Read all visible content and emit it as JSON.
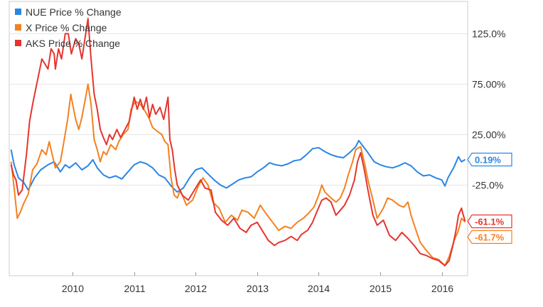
{
  "chart_data": {
    "type": "line",
    "title": "",
    "xlabel": "",
    "ylabel": "",
    "x_ticks": [
      {
        "label": "2010",
        "year": 2010.0
      },
      {
        "label": "2011",
        "year": 2011.0
      },
      {
        "label": "2012",
        "year": 2012.0
      },
      {
        "label": "2013",
        "year": 2013.0
      },
      {
        "label": "2014",
        "year": 2014.0
      },
      {
        "label": "2015",
        "year": 2015.0
      },
      {
        "label": "2016",
        "year": 2016.0
      }
    ],
    "y_ticks": [
      {
        "label": "125.0%",
        "value": 125
      },
      {
        "label": "75.00%",
        "value": 75
      },
      {
        "label": "25.00%",
        "value": 25
      },
      {
        "label": "-25.0%",
        "value": -25
      }
    ],
    "xlim": [
      2008.97,
      2016.42
    ],
    "ylim": [
      -115,
      157
    ],
    "grid": true,
    "legend_position": "top-left",
    "series": [
      {
        "name": "NUE Price % Change",
        "color": "#2a86e3",
        "end_label": "0.19%",
        "points": [
          [
            2009.0,
            10
          ],
          [
            2009.05,
            -5
          ],
          [
            2009.12,
            -18
          ],
          [
            2009.2,
            -22
          ],
          [
            2009.28,
            -30
          ],
          [
            2009.38,
            -18
          ],
          [
            2009.48,
            -10
          ],
          [
            2009.6,
            -5
          ],
          [
            2009.7,
            -2
          ],
          [
            2009.8,
            -12
          ],
          [
            2009.88,
            -5
          ],
          [
            2009.95,
            -8
          ],
          [
            2010.05,
            -3
          ],
          [
            2010.15,
            -10
          ],
          [
            2010.25,
            -6
          ],
          [
            2010.33,
            0
          ],
          [
            2010.4,
            -8
          ],
          [
            2010.5,
            -15
          ],
          [
            2010.6,
            -18
          ],
          [
            2010.7,
            -16
          ],
          [
            2010.8,
            -19
          ],
          [
            2010.9,
            -12
          ],
          [
            2011.0,
            -5
          ],
          [
            2011.1,
            -2
          ],
          [
            2011.2,
            -4
          ],
          [
            2011.3,
            -8
          ],
          [
            2011.4,
            -15
          ],
          [
            2011.5,
            -18
          ],
          [
            2011.6,
            -26
          ],
          [
            2011.7,
            -32
          ],
          [
            2011.8,
            -28
          ],
          [
            2011.9,
            -18
          ],
          [
            2012.0,
            -10
          ],
          [
            2012.1,
            -8
          ],
          [
            2012.2,
            -14
          ],
          [
            2012.3,
            -20
          ],
          [
            2012.4,
            -25
          ],
          [
            2012.5,
            -28
          ],
          [
            2012.6,
            -24
          ],
          [
            2012.7,
            -20
          ],
          [
            2012.8,
            -18
          ],
          [
            2012.9,
            -17
          ],
          [
            2013.0,
            -12
          ],
          [
            2013.1,
            -8
          ],
          [
            2013.2,
            -3
          ],
          [
            2013.3,
            -5
          ],
          [
            2013.4,
            -6
          ],
          [
            2013.5,
            -4
          ],
          [
            2013.6,
            -1
          ],
          [
            2013.7,
            0
          ],
          [
            2013.8,
            5
          ],
          [
            2013.9,
            11
          ],
          [
            2014.0,
            12
          ],
          [
            2014.1,
            8
          ],
          [
            2014.2,
            5
          ],
          [
            2014.3,
            3
          ],
          [
            2014.4,
            2
          ],
          [
            2014.5,
            7
          ],
          [
            2014.6,
            13
          ],
          [
            2014.65,
            19
          ],
          [
            2014.7,
            15
          ],
          [
            2014.8,
            7
          ],
          [
            2014.9,
            -2
          ],
          [
            2015.0,
            -5
          ],
          [
            2015.1,
            -7
          ],
          [
            2015.2,
            -8
          ],
          [
            2015.3,
            -6
          ],
          [
            2015.4,
            -3
          ],
          [
            2015.5,
            -6
          ],
          [
            2015.6,
            -12
          ],
          [
            2015.7,
            -16
          ],
          [
            2015.8,
            -15
          ],
          [
            2015.9,
            -18
          ],
          [
            2016.0,
            -20
          ],
          [
            2016.05,
            -26
          ],
          [
            2016.1,
            -18
          ],
          [
            2016.2,
            -7
          ],
          [
            2016.27,
            3
          ],
          [
            2016.32,
            -2
          ],
          [
            2016.38,
            0.19
          ]
        ]
      },
      {
        "name": "X Price % Change",
        "color": "#f4811f",
        "end_label": "-61.7%",
        "points": [
          [
            2009.0,
            -2
          ],
          [
            2009.05,
            -28
          ],
          [
            2009.1,
            -58
          ],
          [
            2009.15,
            -52
          ],
          [
            2009.2,
            -44
          ],
          [
            2009.28,
            -34
          ],
          [
            2009.35,
            -10
          ],
          [
            2009.42,
            -4
          ],
          [
            2009.5,
            10
          ],
          [
            2009.57,
            5
          ],
          [
            2009.62,
            18
          ],
          [
            2009.68,
            2
          ],
          [
            2009.72,
            -8
          ],
          [
            2009.8,
            -2
          ],
          [
            2009.85,
            15
          ],
          [
            2009.92,
            40
          ],
          [
            2009.97,
            65
          ],
          [
            2010.0,
            55
          ],
          [
            2010.05,
            40
          ],
          [
            2010.1,
            30
          ],
          [
            2010.15,
            42
          ],
          [
            2010.2,
            58
          ],
          [
            2010.25,
            75
          ],
          [
            2010.3,
            55
          ],
          [
            2010.35,
            20
          ],
          [
            2010.4,
            10
          ],
          [
            2010.45,
            -2
          ],
          [
            2010.5,
            8
          ],
          [
            2010.55,
            5
          ],
          [
            2010.62,
            15
          ],
          [
            2010.7,
            10
          ],
          [
            2010.75,
            18
          ],
          [
            2010.82,
            25
          ],
          [
            2010.9,
            30
          ],
          [
            2010.95,
            50
          ],
          [
            2011.02,
            58
          ],
          [
            2011.1,
            55
          ],
          [
            2011.18,
            48
          ],
          [
            2011.25,
            40
          ],
          [
            2011.3,
            32
          ],
          [
            2011.38,
            28
          ],
          [
            2011.45,
            25
          ],
          [
            2011.5,
            18
          ],
          [
            2011.55,
            15
          ],
          [
            2011.6,
            -18
          ],
          [
            2011.65,
            -35
          ],
          [
            2011.7,
            -38
          ],
          [
            2011.75,
            -30
          ],
          [
            2011.85,
            -45
          ],
          [
            2011.95,
            -40
          ],
          [
            2012.05,
            -25
          ],
          [
            2012.12,
            -18
          ],
          [
            2012.2,
            -25
          ],
          [
            2012.28,
            -42
          ],
          [
            2012.38,
            -48
          ],
          [
            2012.48,
            -62
          ],
          [
            2012.58,
            -55
          ],
          [
            2012.68,
            -60
          ],
          [
            2012.75,
            -50
          ],
          [
            2012.85,
            -52
          ],
          [
            2012.95,
            -58
          ],
          [
            2013.05,
            -45
          ],
          [
            2013.15,
            -54
          ],
          [
            2013.25,
            -62
          ],
          [
            2013.35,
            -70
          ],
          [
            2013.45,
            -66
          ],
          [
            2013.55,
            -68
          ],
          [
            2013.65,
            -62
          ],
          [
            2013.75,
            -58
          ],
          [
            2013.85,
            -52
          ],
          [
            2013.92,
            -47
          ],
          [
            2014.0,
            -35
          ],
          [
            2014.05,
            -25
          ],
          [
            2014.1,
            -32
          ],
          [
            2014.2,
            -38
          ],
          [
            2014.28,
            -42
          ],
          [
            2014.35,
            -38
          ],
          [
            2014.42,
            -28
          ],
          [
            2014.48,
            -15
          ],
          [
            2014.55,
            -2
          ],
          [
            2014.6,
            10
          ],
          [
            2014.68,
            13
          ],
          [
            2014.75,
            -5
          ],
          [
            2014.8,
            -20
          ],
          [
            2014.88,
            -40
          ],
          [
            2014.95,
            -58
          ],
          [
            2015.05,
            -48
          ],
          [
            2015.12,
            -38
          ],
          [
            2015.2,
            -40
          ],
          [
            2015.3,
            -45
          ],
          [
            2015.38,
            -47
          ],
          [
            2015.45,
            -42
          ],
          [
            2015.5,
            -55
          ],
          [
            2015.58,
            -70
          ],
          [
            2015.65,
            -82
          ],
          [
            2015.75,
            -90
          ],
          [
            2015.85,
            -97
          ],
          [
            2015.95,
            -99
          ],
          [
            2016.05,
            -105
          ],
          [
            2016.12,
            -96
          ],
          [
            2016.2,
            -80
          ],
          [
            2016.27,
            -70
          ],
          [
            2016.32,
            -58
          ],
          [
            2016.38,
            -61.7
          ]
        ]
      },
      {
        "name": "AKS Price % Change",
        "color": "#e5352f",
        "end_label": "-61.1%",
        "points": [
          [
            2009.0,
            -5
          ],
          [
            2009.04,
            -15
          ],
          [
            2009.08,
            -20
          ],
          [
            2009.12,
            -35
          ],
          [
            2009.18,
            -30
          ],
          [
            2009.25,
            5
          ],
          [
            2009.3,
            38
          ],
          [
            2009.35,
            55
          ],
          [
            2009.4,
            70
          ],
          [
            2009.45,
            85
          ],
          [
            2009.5,
            100
          ],
          [
            2009.55,
            95
          ],
          [
            2009.6,
            90
          ],
          [
            2009.65,
            110
          ],
          [
            2009.7,
            105
          ],
          [
            2009.72,
            90
          ],
          [
            2009.77,
            110
          ],
          [
            2009.82,
            100
          ],
          [
            2009.88,
            125
          ],
          [
            2009.93,
            125
          ],
          [
            2009.98,
            105
          ],
          [
            2010.05,
            120
          ],
          [
            2010.1,
            115
          ],
          [
            2010.15,
            100
          ],
          [
            2010.2,
            120
          ],
          [
            2010.25,
            140
          ],
          [
            2010.3,
            100
          ],
          [
            2010.35,
            65
          ],
          [
            2010.4,
            50
          ],
          [
            2010.45,
            30
          ],
          [
            2010.5,
            22
          ],
          [
            2010.55,
            15
          ],
          [
            2010.6,
            25
          ],
          [
            2010.65,
            20
          ],
          [
            2010.72,
            30
          ],
          [
            2010.78,
            22
          ],
          [
            2010.85,
            30
          ],
          [
            2010.92,
            38
          ],
          [
            2011.0,
            62
          ],
          [
            2011.05,
            50
          ],
          [
            2011.1,
            60
          ],
          [
            2011.15,
            50
          ],
          [
            2011.2,
            62
          ],
          [
            2011.25,
            42
          ],
          [
            2011.3,
            55
          ],
          [
            2011.35,
            45
          ],
          [
            2011.42,
            52
          ],
          [
            2011.48,
            40
          ],
          [
            2011.55,
            62
          ],
          [
            2011.58,
            20
          ],
          [
            2011.62,
            10
          ],
          [
            2011.66,
            -10
          ],
          [
            2011.7,
            -25
          ],
          [
            2011.78,
            -35
          ],
          [
            2011.88,
            -40
          ],
          [
            2011.98,
            -30
          ],
          [
            2012.08,
            -20
          ],
          [
            2012.15,
            -28
          ],
          [
            2012.25,
            -30
          ],
          [
            2012.32,
            -52
          ],
          [
            2012.42,
            -60
          ],
          [
            2012.52,
            -65
          ],
          [
            2012.62,
            -58
          ],
          [
            2012.72,
            -68
          ],
          [
            2012.82,
            -72
          ],
          [
            2012.9,
            -65
          ],
          [
            2013.0,
            -62
          ],
          [
            2013.08,
            -70
          ],
          [
            2013.18,
            -80
          ],
          [
            2013.28,
            -85
          ],
          [
            2013.35,
            -82
          ],
          [
            2013.45,
            -80
          ],
          [
            2013.55,
            -76
          ],
          [
            2013.65,
            -80
          ],
          [
            2013.72,
            -74
          ],
          [
            2013.82,
            -70
          ],
          [
            2013.9,
            -62
          ],
          [
            2013.98,
            -50
          ],
          [
            2014.05,
            -40
          ],
          [
            2014.12,
            -38
          ],
          [
            2014.2,
            -42
          ],
          [
            2014.28,
            -55
          ],
          [
            2014.35,
            -50
          ],
          [
            2014.42,
            -45
          ],
          [
            2014.5,
            -35
          ],
          [
            2014.58,
            -20
          ],
          [
            2014.63,
            -2
          ],
          [
            2014.68,
            7
          ],
          [
            2014.74,
            -10
          ],
          [
            2014.8,
            -30
          ],
          [
            2014.88,
            -55
          ],
          [
            2014.95,
            -65
          ],
          [
            2015.05,
            -60
          ],
          [
            2015.15,
            -75
          ],
          [
            2015.25,
            -80
          ],
          [
            2015.35,
            -72
          ],
          [
            2015.45,
            -78
          ],
          [
            2015.55,
            -85
          ],
          [
            2015.65,
            -93
          ],
          [
            2015.75,
            -95
          ],
          [
            2015.85,
            -98
          ],
          [
            2015.95,
            -100
          ],
          [
            2016.05,
            -105
          ],
          [
            2016.12,
            -100
          ],
          [
            2016.18,
            -85
          ],
          [
            2016.23,
            -70
          ],
          [
            2016.27,
            -55
          ],
          [
            2016.32,
            -48
          ],
          [
            2016.35,
            -55
          ],
          [
            2016.38,
            -61.1
          ]
        ]
      }
    ]
  }
}
